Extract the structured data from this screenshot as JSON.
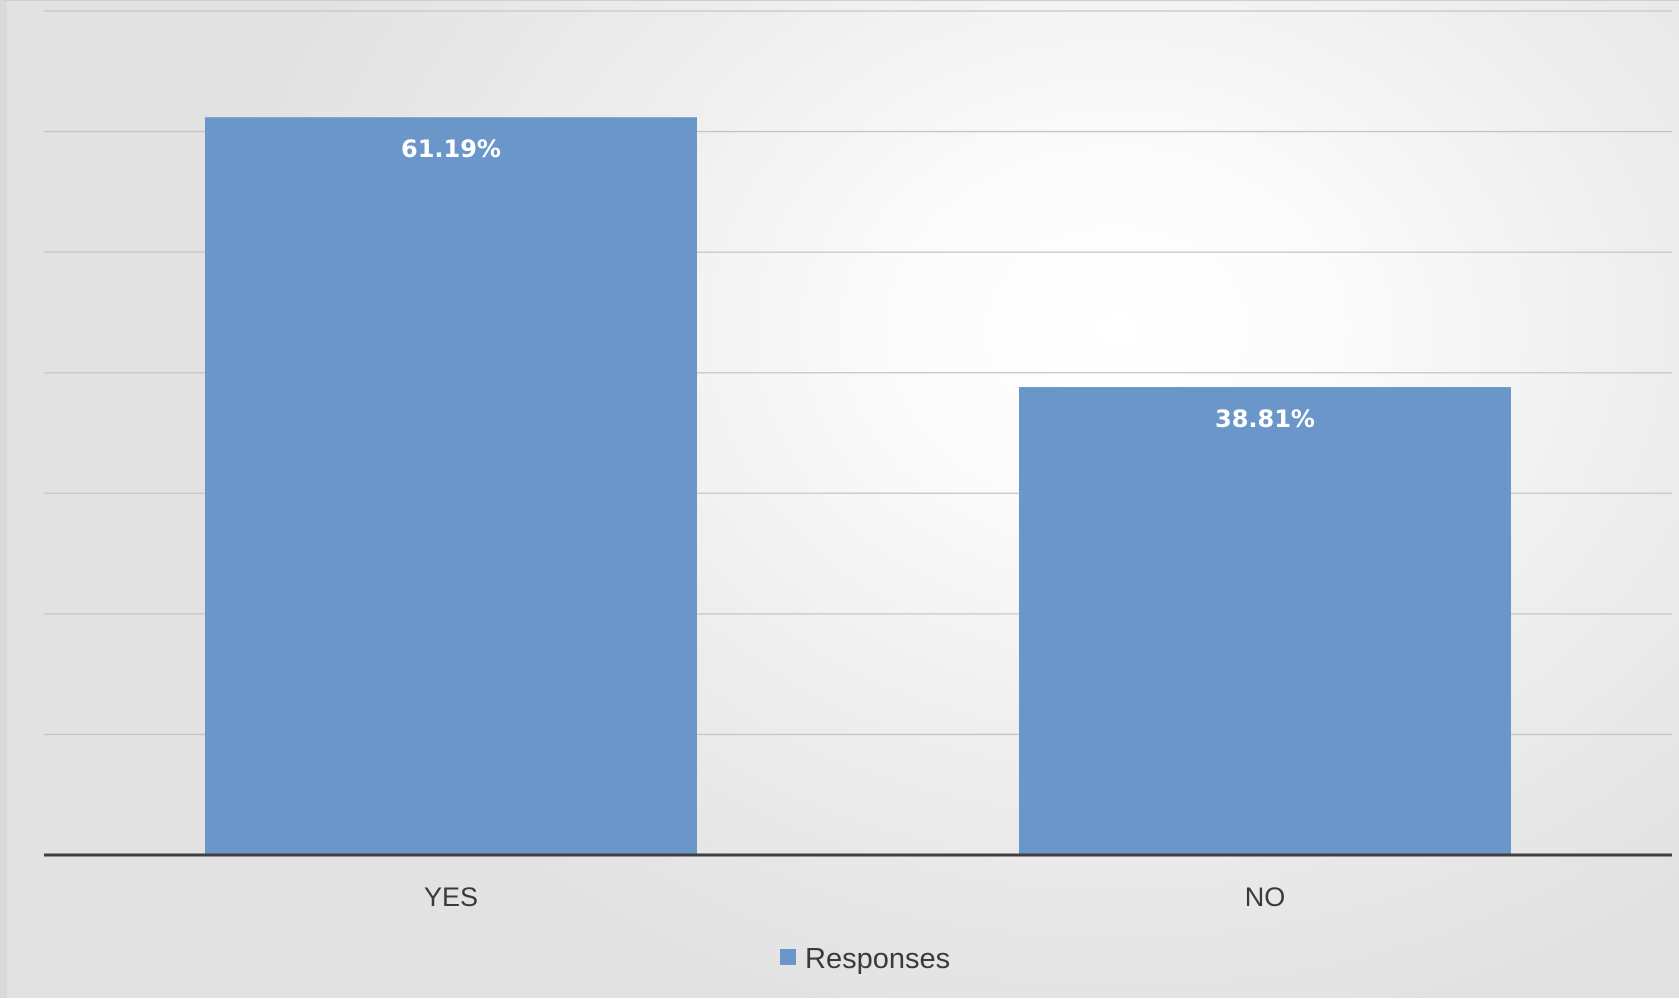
{
  "chart_data": {
    "type": "bar",
    "categories": [
      "YES",
      "NO"
    ],
    "series": [
      {
        "name": "Responses",
        "values": [
          61.19,
          38.81
        ],
        "data_labels": [
          "61.19%",
          "38.81%"
        ],
        "color": "#6a96c9"
      }
    ],
    "title": "",
    "xlabel": "",
    "ylabel": "",
    "ylim": [
      0,
      70
    ],
    "grid": true,
    "legend": "bottom",
    "colors": {
      "bar": "#6a96c9",
      "gridline": "#c6c6c6",
      "axis": "#404040"
    }
  }
}
